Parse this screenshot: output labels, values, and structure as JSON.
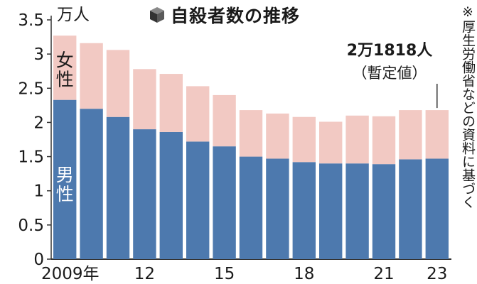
{
  "chart_data": {
    "type": "bar",
    "stacked": true,
    "title": "自殺者数の推移",
    "unit": "万人",
    "ylim": [
      0,
      3.5
    ],
    "y_ticks": [
      0,
      0.5,
      1,
      1.5,
      2,
      2.5,
      3,
      3.5
    ],
    "y_tick_labels": [
      "0",
      "0.5",
      "1",
      "1.5",
      "2",
      "2.5",
      "3",
      "3.5"
    ],
    "categories": [
      "2009",
      "2010",
      "2011",
      "2012",
      "2013",
      "2014",
      "2015",
      "2016",
      "2017",
      "2018",
      "2019",
      "2020",
      "2021",
      "2022",
      "2023"
    ],
    "x_tick_labels": [
      {
        "index": 0,
        "label": "2009年"
      },
      {
        "index": 3,
        "label": "12"
      },
      {
        "index": 6,
        "label": "15"
      },
      {
        "index": 9,
        "label": "18"
      },
      {
        "index": 12,
        "label": "21"
      },
      {
        "index": 14,
        "label": "23"
      }
    ],
    "series": [
      {
        "name": "男性",
        "color": "#4d79ae",
        "values": [
          2.33,
          2.2,
          2.08,
          1.9,
          1.86,
          1.72,
          1.65,
          1.5,
          1.47,
          1.42,
          1.4,
          1.4,
          1.39,
          1.46,
          1.47
        ]
      },
      {
        "name": "女性",
        "color": "#f2c9c3",
        "values": [
          0.94,
          0.96,
          0.98,
          0.88,
          0.85,
          0.81,
          0.75,
          0.68,
          0.66,
          0.66,
          0.61,
          0.7,
          0.7,
          0.72,
          0.71
        ]
      }
    ],
    "annotation": {
      "index": 14,
      "line1": "2万1818人",
      "line2": "（暫定値）"
    }
  },
  "note": "※厚生労働省などの資料に基づく",
  "title_icon": "cube-icon"
}
